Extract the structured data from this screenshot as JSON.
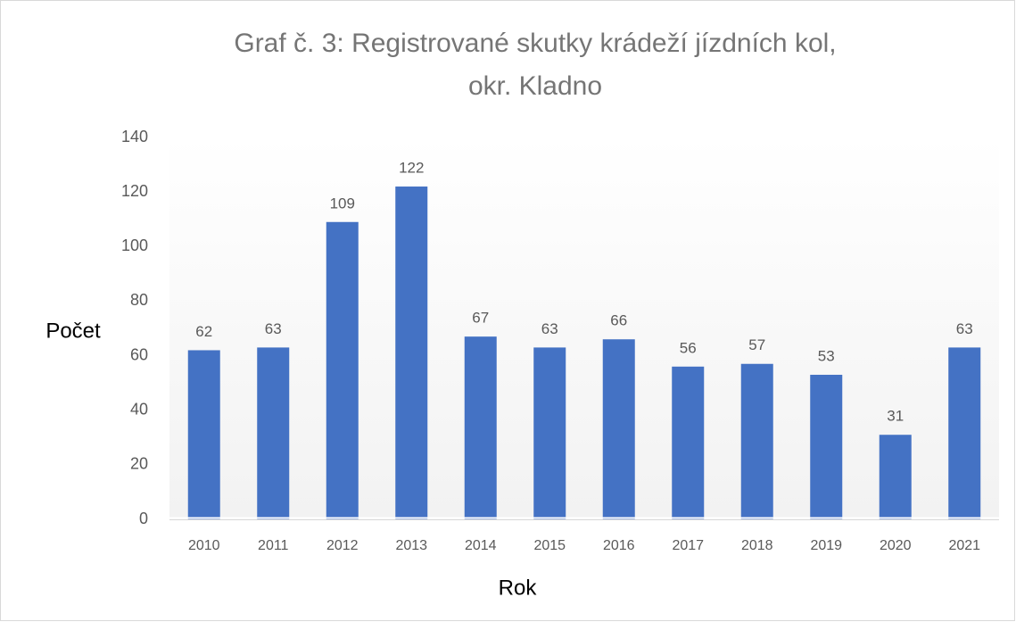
{
  "chart_data": {
    "type": "bar",
    "title": [
      "Graf č. 3: Registrované skutky krádeží jízdních kol,",
      "okr. Kladno"
    ],
    "x_label": "Rok",
    "y_label": "Počet",
    "categories": [
      "2010",
      "2011",
      "2012",
      "2013",
      "2014",
      "2015",
      "2016",
      "2017",
      "2018",
      "2019",
      "2020",
      "2021"
    ],
    "values": [
      62,
      63,
      109,
      122,
      67,
      63,
      66,
      56,
      57,
      53,
      31,
      63
    ],
    "color": "#4472c4",
    "ylim": [
      0,
      140
    ],
    "yticks": [
      0,
      20,
      40,
      60,
      80,
      100,
      120,
      140
    ],
    "grid": false
  }
}
